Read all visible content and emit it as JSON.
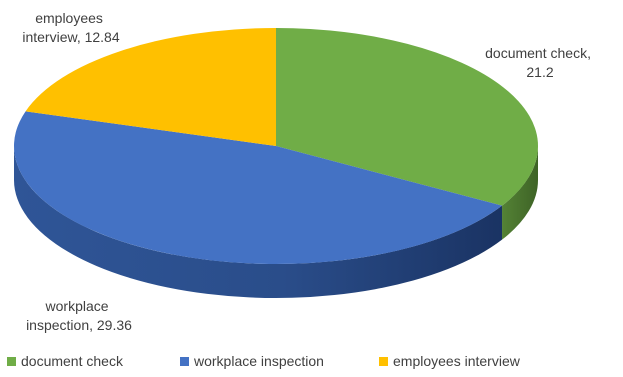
{
  "chart_data": {
    "type": "pie",
    "title": "",
    "style": "3d",
    "legend_position": "bottom",
    "slices": [
      {
        "label": "document check",
        "value": 21.2,
        "color": "#70ad47"
      },
      {
        "label": "workplace inspection",
        "value": 29.36,
        "color": "#4472c4"
      },
      {
        "label": "employees interview",
        "value": 12.84,
        "color": "#ffc000"
      }
    ],
    "data_labels": [
      {
        "lines": [
          "document check,",
          "21.2"
        ]
      },
      {
        "lines": [
          "workplace",
          "inspection, 29.36"
        ]
      },
      {
        "lines": [
          "employees",
          "interview, 12.84"
        ]
      }
    ],
    "legend": [
      {
        "label": "document check",
        "color": "#70ad47"
      },
      {
        "label": "workplace inspection",
        "color": "#4472c4"
      },
      {
        "label": "employees interview",
        "color": "#ffc000"
      }
    ]
  }
}
